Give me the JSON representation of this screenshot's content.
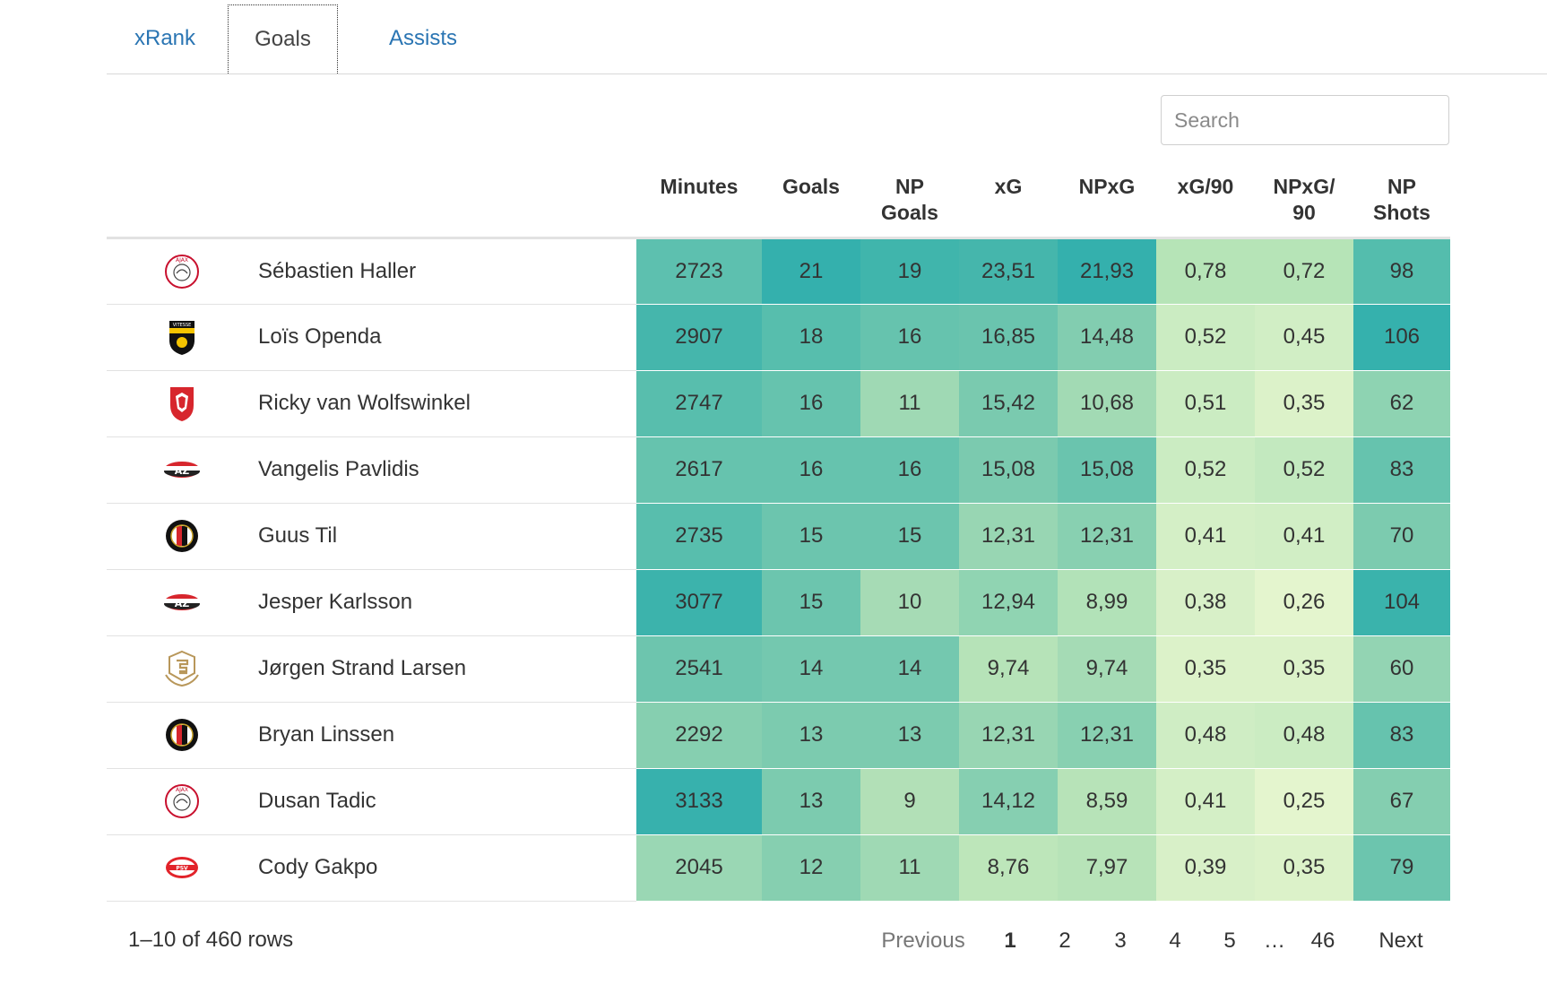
{
  "tabs": [
    "xRank",
    "Goals",
    "Assists"
  ],
  "active_tab": 1,
  "search": {
    "placeholder": "Search"
  },
  "columns": [
    {
      "label": "",
      "key": "logo"
    },
    {
      "label": "",
      "key": "name"
    },
    {
      "label": "Minutes"
    },
    {
      "label": "Goals"
    },
    {
      "label": "NP\nGoals"
    },
    {
      "label": "xG"
    },
    {
      "label": "NPxG"
    },
    {
      "label": "xG/90"
    },
    {
      "label": "NPxG/\n90"
    },
    {
      "label": "NP\nShots"
    }
  ],
  "rows": [
    {
      "club": "ajax",
      "name": "Sébastien Haller",
      "values": [
        "2723",
        "21",
        "19",
        "23,51",
        "21,93",
        "0,78",
        "0,72",
        "98"
      ],
      "colors": [
        "#5dc0af",
        "#34b0ad",
        "#40b5ac",
        "#45b6ac",
        "#34b0ad",
        "#b6e4b7",
        "#b6e4b7",
        "#54bdad"
      ]
    },
    {
      "club": "vitesse",
      "name": "Loïs Openda",
      "values": [
        "2907",
        "18",
        "16",
        "16,85",
        "14,48",
        "0,52",
        "0,45",
        "106"
      ],
      "colors": [
        "#45b6ac",
        "#57bead",
        "#66c3ae",
        "#6ac4ae",
        "#82cdb0",
        "#cbecc2",
        "#d1eec5",
        "#35b1ad"
      ]
    },
    {
      "club": "twente",
      "name": "Ricky van Wolfswinkel",
      "values": [
        "2747",
        "16",
        "11",
        "15,42",
        "10,68",
        "0,51",
        "0,35",
        "62"
      ],
      "colors": [
        "#58bead",
        "#66c3ae",
        "#9fd9b4",
        "#7acaaf",
        "#a2dab4",
        "#cbecc2",
        "#dcf2c9",
        "#8ed3b2"
      ]
    },
    {
      "club": "az",
      "name": "Vangelis Pavlidis",
      "values": [
        "2617",
        "16",
        "16",
        "15,08",
        "15,08",
        "0,52",
        "0,52",
        "83"
      ],
      "colors": [
        "#66c3ae",
        "#66c3ae",
        "#66c3ae",
        "#7bcaaf",
        "#6ac4ae",
        "#cbecc2",
        "#c3e9bf",
        "#66c3ae"
      ]
    },
    {
      "club": "feyenoord",
      "name": "Guus Til",
      "values": [
        "2735",
        "15",
        "15",
        "12,31",
        "12,31",
        "0,41",
        "0,41",
        "70"
      ],
      "colors": [
        "#58bead",
        "#6cc5ae",
        "#6cc5ae",
        "#98d6b3",
        "#88d0b1",
        "#d4efc6",
        "#d1eec5",
        "#7ccbaf"
      ]
    },
    {
      "club": "az",
      "name": "Jesper Karlsson",
      "values": [
        "3077",
        "15",
        "10",
        "12,94",
        "8,99",
        "0,38",
        "0,26",
        "104"
      ],
      "colors": [
        "#3cb3ac",
        "#6cc5ae",
        "#a6dbb5",
        "#90d4b2",
        "#b2e2b8",
        "#d8f0c8",
        "#e4f5ce",
        "#3ab3ac"
      ]
    },
    {
      "club": "eredivisie",
      "name": "Jørgen Strand Larsen",
      "values": [
        "2541",
        "14",
        "14",
        "9,74",
        "9,74",
        "0,35",
        "0,35",
        "60"
      ],
      "colors": [
        "#6dc5ae",
        "#74c8af",
        "#74c8af",
        "#b6e3b8",
        "#a5dbb5",
        "#dcf2c9",
        "#dcf2c9",
        "#93d4b3"
      ]
    },
    {
      "club": "feyenoord",
      "name": "Bryan Linssen",
      "values": [
        "2292",
        "13",
        "13",
        "12,31",
        "12,31",
        "0,48",
        "0,48",
        "83"
      ],
      "colors": [
        "#86cfb0",
        "#7ccbaf",
        "#7ccbaf",
        "#98d6b3",
        "#88d0b1",
        "#cfedc4",
        "#cbecc2",
        "#66c3ae"
      ]
    },
    {
      "club": "ajax",
      "name": "Dusan Tadic",
      "values": [
        "3133",
        "13",
        "9",
        "14,12",
        "8,59",
        "0,41",
        "0,25",
        "67"
      ],
      "colors": [
        "#37b1ad",
        "#7ccbaf",
        "#b2e0b7",
        "#86cfb1",
        "#b7e3b8",
        "#d4efc6",
        "#e4f5ce",
        "#84ceb0"
      ]
    },
    {
      "club": "psv",
      "name": "Cody Gakpo",
      "values": [
        "2045",
        "12",
        "11",
        "8,76",
        "7,97",
        "0,39",
        "0,35",
        "79"
      ],
      "colors": [
        "#9ad7b4",
        "#86cfb0",
        "#9fd9b4",
        "#bde6ba",
        "#b7e3b8",
        "#d8f0c8",
        "#dcf2c9",
        "#6cc5ae"
      ]
    }
  ],
  "footer": {
    "info": "1–10 of 460 rows"
  },
  "pagination": {
    "previous": "Previous",
    "pages": [
      "1",
      "2",
      "3",
      "4",
      "5",
      "…",
      "46"
    ],
    "current": "1",
    "next": "Next"
  }
}
